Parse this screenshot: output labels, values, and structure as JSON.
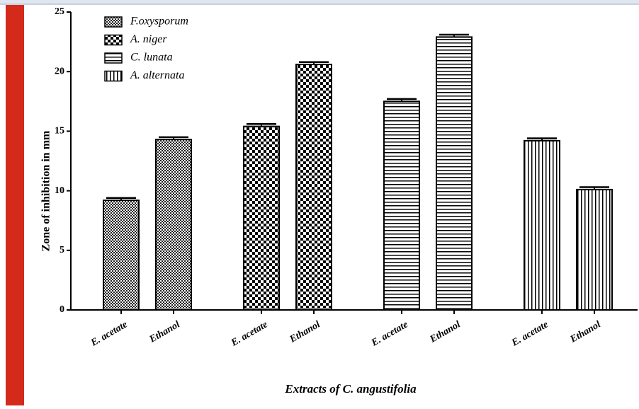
{
  "chart_data": {
    "type": "bar",
    "x_label": "Extracts of C. angustifolia",
    "y_label": "Zone of inhibition in mm",
    "categories": [
      "E. acetate",
      "Ethanol",
      "E. acetate",
      "Ethanol",
      "E. acetate",
      "Ethanol",
      "E. acetate",
      "Ethanol"
    ],
    "series": [
      {
        "name": "F.oxysporum",
        "color": "#000000",
        "pattern": "fine-checker",
        "values": [
          9.2,
          14.3,
          null,
          null,
          null,
          null,
          null,
          null
        ],
        "errors": [
          0.2,
          0.2,
          null,
          null,
          null,
          null,
          null,
          null
        ]
      },
      {
        "name": "A. niger",
        "color": "#000000",
        "pattern": "checker",
        "values": [
          null,
          null,
          15.4,
          20.6,
          null,
          null,
          null,
          null
        ],
        "errors": [
          null,
          null,
          0.2,
          0.2,
          null,
          null,
          null,
          null
        ]
      },
      {
        "name": "C. lunata",
        "color": "#000000",
        "pattern": "horizontal",
        "values": [
          null,
          null,
          null,
          null,
          17.5,
          22.9,
          null,
          null
        ],
        "errors": [
          null,
          null,
          null,
          null,
          0.2,
          0.2,
          null,
          null
        ]
      },
      {
        "name": "A. alternata",
        "color": "#000000",
        "pattern": "vertical",
        "values": [
          null,
          null,
          null,
          null,
          null,
          null,
          14.2,
          10.1
        ],
        "errors": [
          null,
          null,
          null,
          null,
          null,
          null,
          0.2,
          0.2
        ]
      }
    ],
    "ylim": [
      0,
      25
    ],
    "yticks": [
      0,
      5,
      10,
      15,
      20,
      25
    ],
    "legend": "upper left",
    "grid": false
  }
}
